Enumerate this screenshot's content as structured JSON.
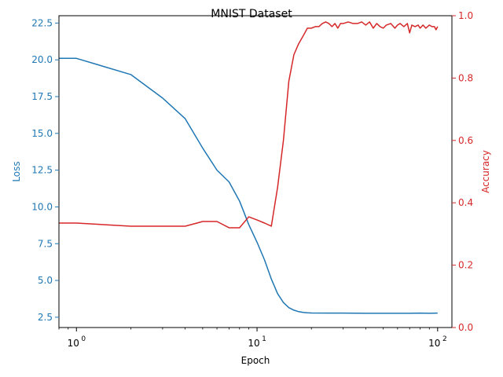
{
  "chart_data": {
    "type": "line",
    "title": "MNIST Dataset",
    "xlabel": "Epoch",
    "xscale": "log",
    "xlim": [
      0.8,
      120
    ],
    "x_ticks": [
      {
        "value": 1,
        "label": "10",
        "exp": "0"
      },
      {
        "value": 10,
        "label": "10",
        "exp": "1"
      },
      {
        "value": 100,
        "label": "10",
        "exp": "2"
      }
    ],
    "left_axis": {
      "label": "Loss",
      "color": "#1f77b4",
      "ylim": [
        1.8,
        23.0
      ],
      "ticks": [
        "2.5",
        "5.0",
        "7.5",
        "10.0",
        "12.5",
        "15.0",
        "17.5",
        "20.0",
        "22.5"
      ]
    },
    "right_axis": {
      "label": "Accuracy",
      "color": "#d62728",
      "ylim": [
        0.0,
        1.0
      ],
      "ticks": [
        "0.0",
        "0.2",
        "0.4",
        "0.6",
        "0.8",
        "1.0"
      ]
    },
    "series": [
      {
        "name": "Loss",
        "axis": "left",
        "color": "#1f77b4",
        "x": [
          0.8,
          1,
          2,
          3,
          4,
          5,
          6,
          7,
          8,
          9,
          10,
          11,
          12,
          13,
          14,
          15,
          16,
          17,
          18,
          19,
          20,
          25,
          30,
          40,
          50,
          60,
          70,
          80,
          90,
          100
        ],
        "y": [
          20.1,
          20.1,
          19.0,
          17.4,
          16.0,
          14.0,
          12.5,
          11.7,
          10.4,
          8.8,
          7.6,
          6.4,
          5.1,
          4.1,
          3.5,
          3.15,
          2.98,
          2.88,
          2.83,
          2.8,
          2.79,
          2.78,
          2.78,
          2.77,
          2.77,
          2.77,
          2.77,
          2.78,
          2.77,
          2.78
        ]
      },
      {
        "name": "Accuracy",
        "axis": "right",
        "color": "#d62728",
        "x": [
          0.8,
          1,
          2,
          3,
          4,
          5,
          6,
          7,
          8,
          9,
          10,
          11,
          12,
          13,
          14,
          15,
          16,
          17,
          18,
          19,
          20,
          21,
          22,
          23,
          24,
          25,
          26,
          27,
          28,
          29,
          30,
          32,
          34,
          36,
          38,
          40,
          42,
          44,
          46,
          48,
          50,
          52,
          55,
          58,
          60,
          62,
          65,
          68,
          70,
          72,
          75,
          78,
          80,
          83,
          86,
          90,
          93,
          96,
          98,
          100
        ],
        "y": [
          0.335,
          0.335,
          0.325,
          0.325,
          0.325,
          0.34,
          0.34,
          0.32,
          0.32,
          0.355,
          0.345,
          0.335,
          0.325,
          0.45,
          0.6,
          0.79,
          0.875,
          0.91,
          0.935,
          0.96,
          0.96,
          0.965,
          0.965,
          0.975,
          0.98,
          0.975,
          0.965,
          0.975,
          0.96,
          0.975,
          0.975,
          0.98,
          0.975,
          0.975,
          0.98,
          0.97,
          0.98,
          0.96,
          0.975,
          0.965,
          0.96,
          0.97,
          0.975,
          0.96,
          0.97,
          0.975,
          0.965,
          0.975,
          0.945,
          0.97,
          0.965,
          0.97,
          0.96,
          0.97,
          0.96,
          0.97,
          0.965,
          0.965,
          0.955,
          0.965
        ]
      }
    ]
  }
}
